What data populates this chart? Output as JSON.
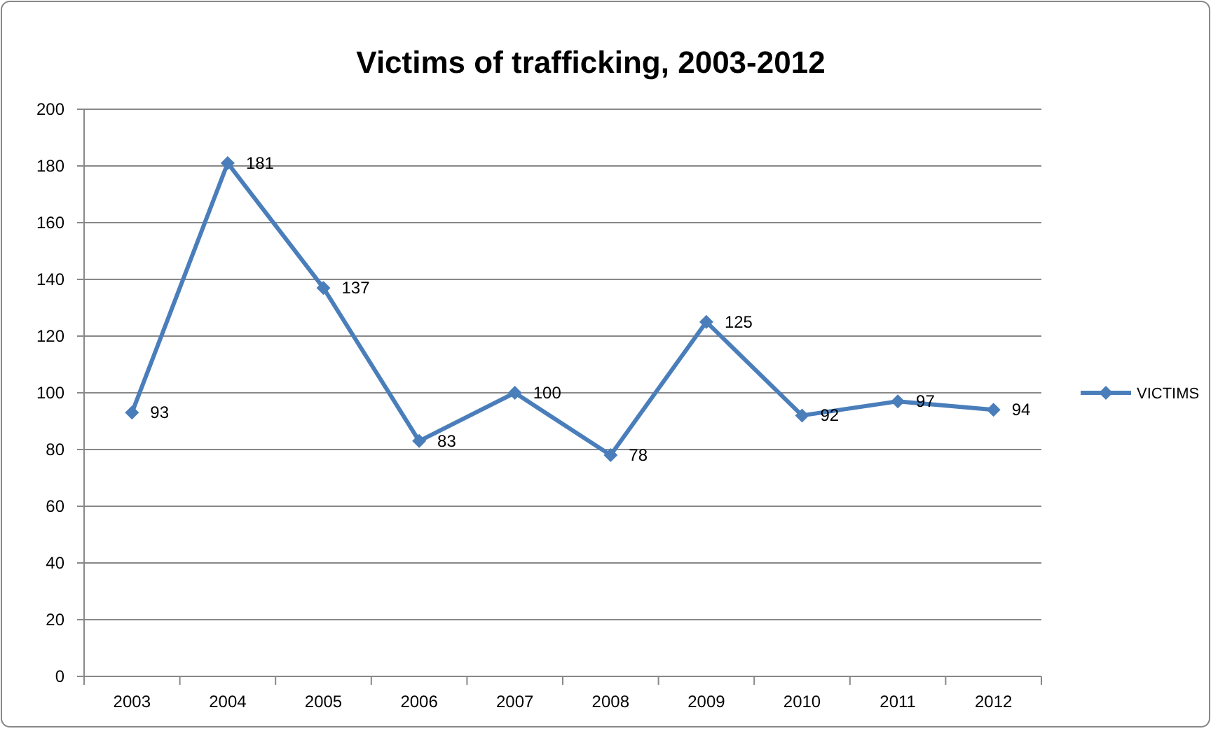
{
  "chart_data": {
    "type": "line",
    "title": "Victims of trafficking, 2003-2012",
    "categories": [
      "2003",
      "2004",
      "2005",
      "2006",
      "2007",
      "2008",
      "2009",
      "2010",
      "2011",
      "2012"
    ],
    "series": [
      {
        "name": "VICTIMS",
        "color": "#4a7ebb",
        "values": [
          93,
          181,
          137,
          83,
          100,
          78,
          125,
          92,
          97,
          94
        ]
      }
    ],
    "ylim": [
      0,
      200
    ],
    "yticks": [
      0,
      20,
      40,
      60,
      80,
      100,
      120,
      140,
      160,
      180,
      200
    ],
    "grid": "y",
    "legend": "right",
    "marker": "diamond",
    "line_style": "solid",
    "data_labels": true
  }
}
